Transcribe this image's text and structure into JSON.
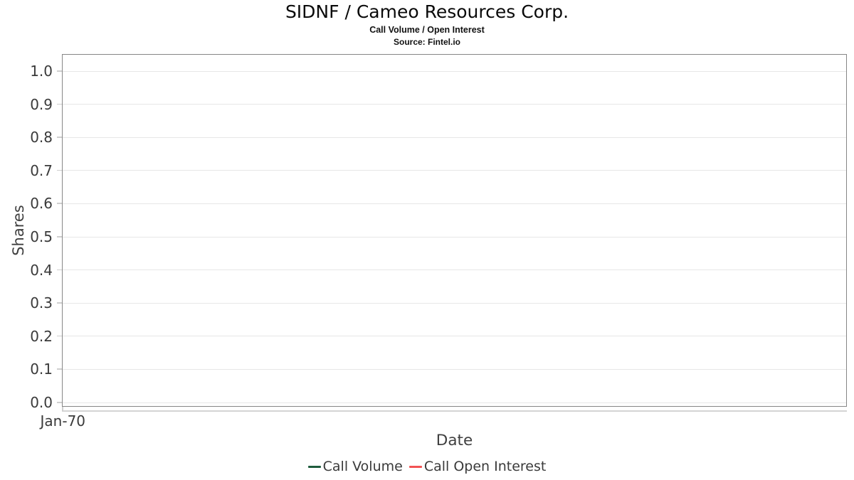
{
  "header": {
    "title": "SIDNF / Cameo Resources Corp.",
    "subtitle": "Call Volume / Open Interest",
    "source": "Source: Fintel.io"
  },
  "y_axis": {
    "label": "Shares",
    "ticks": [
      "1.0",
      "0.9",
      "0.8",
      "0.7",
      "0.6",
      "0.5",
      "0.4",
      "0.3",
      "0.2",
      "0.1",
      "0.0"
    ]
  },
  "x_axis": {
    "label": "Date",
    "ticks": [
      "Jan-70"
    ]
  },
  "legend": [
    {
      "label": "Call Volume",
      "color": "#1e5c3d"
    },
    {
      "label": "Call Open Interest",
      "color": "#f25354"
    }
  ],
  "colors": {
    "plot_border": "#868686",
    "gridline": "#e7e7e7",
    "tick": "#cfcfcf",
    "text": "#3a3a3a"
  },
  "chart_data": {
    "type": "line",
    "title": "SIDNF / Cameo Resources Corp.",
    "subtitle": "Call Volume / Open Interest",
    "source": "Source: Fintel.io",
    "xlabel": "Date",
    "ylabel": "Shares",
    "ylim": [
      0.0,
      1.0
    ],
    "y_ticks": [
      0.0,
      0.1,
      0.2,
      0.3,
      0.4,
      0.5,
      0.6,
      0.7,
      0.8,
      0.9,
      1.0
    ],
    "x_tick_labels": [
      "Jan-70"
    ],
    "grid": true,
    "legend_position": "bottom",
    "series": [
      {
        "name": "Call Volume",
        "color": "#1e5c3d",
        "x": [],
        "values": []
      },
      {
        "name": "Call Open Interest",
        "color": "#f25354",
        "x": [],
        "values": []
      }
    ]
  }
}
